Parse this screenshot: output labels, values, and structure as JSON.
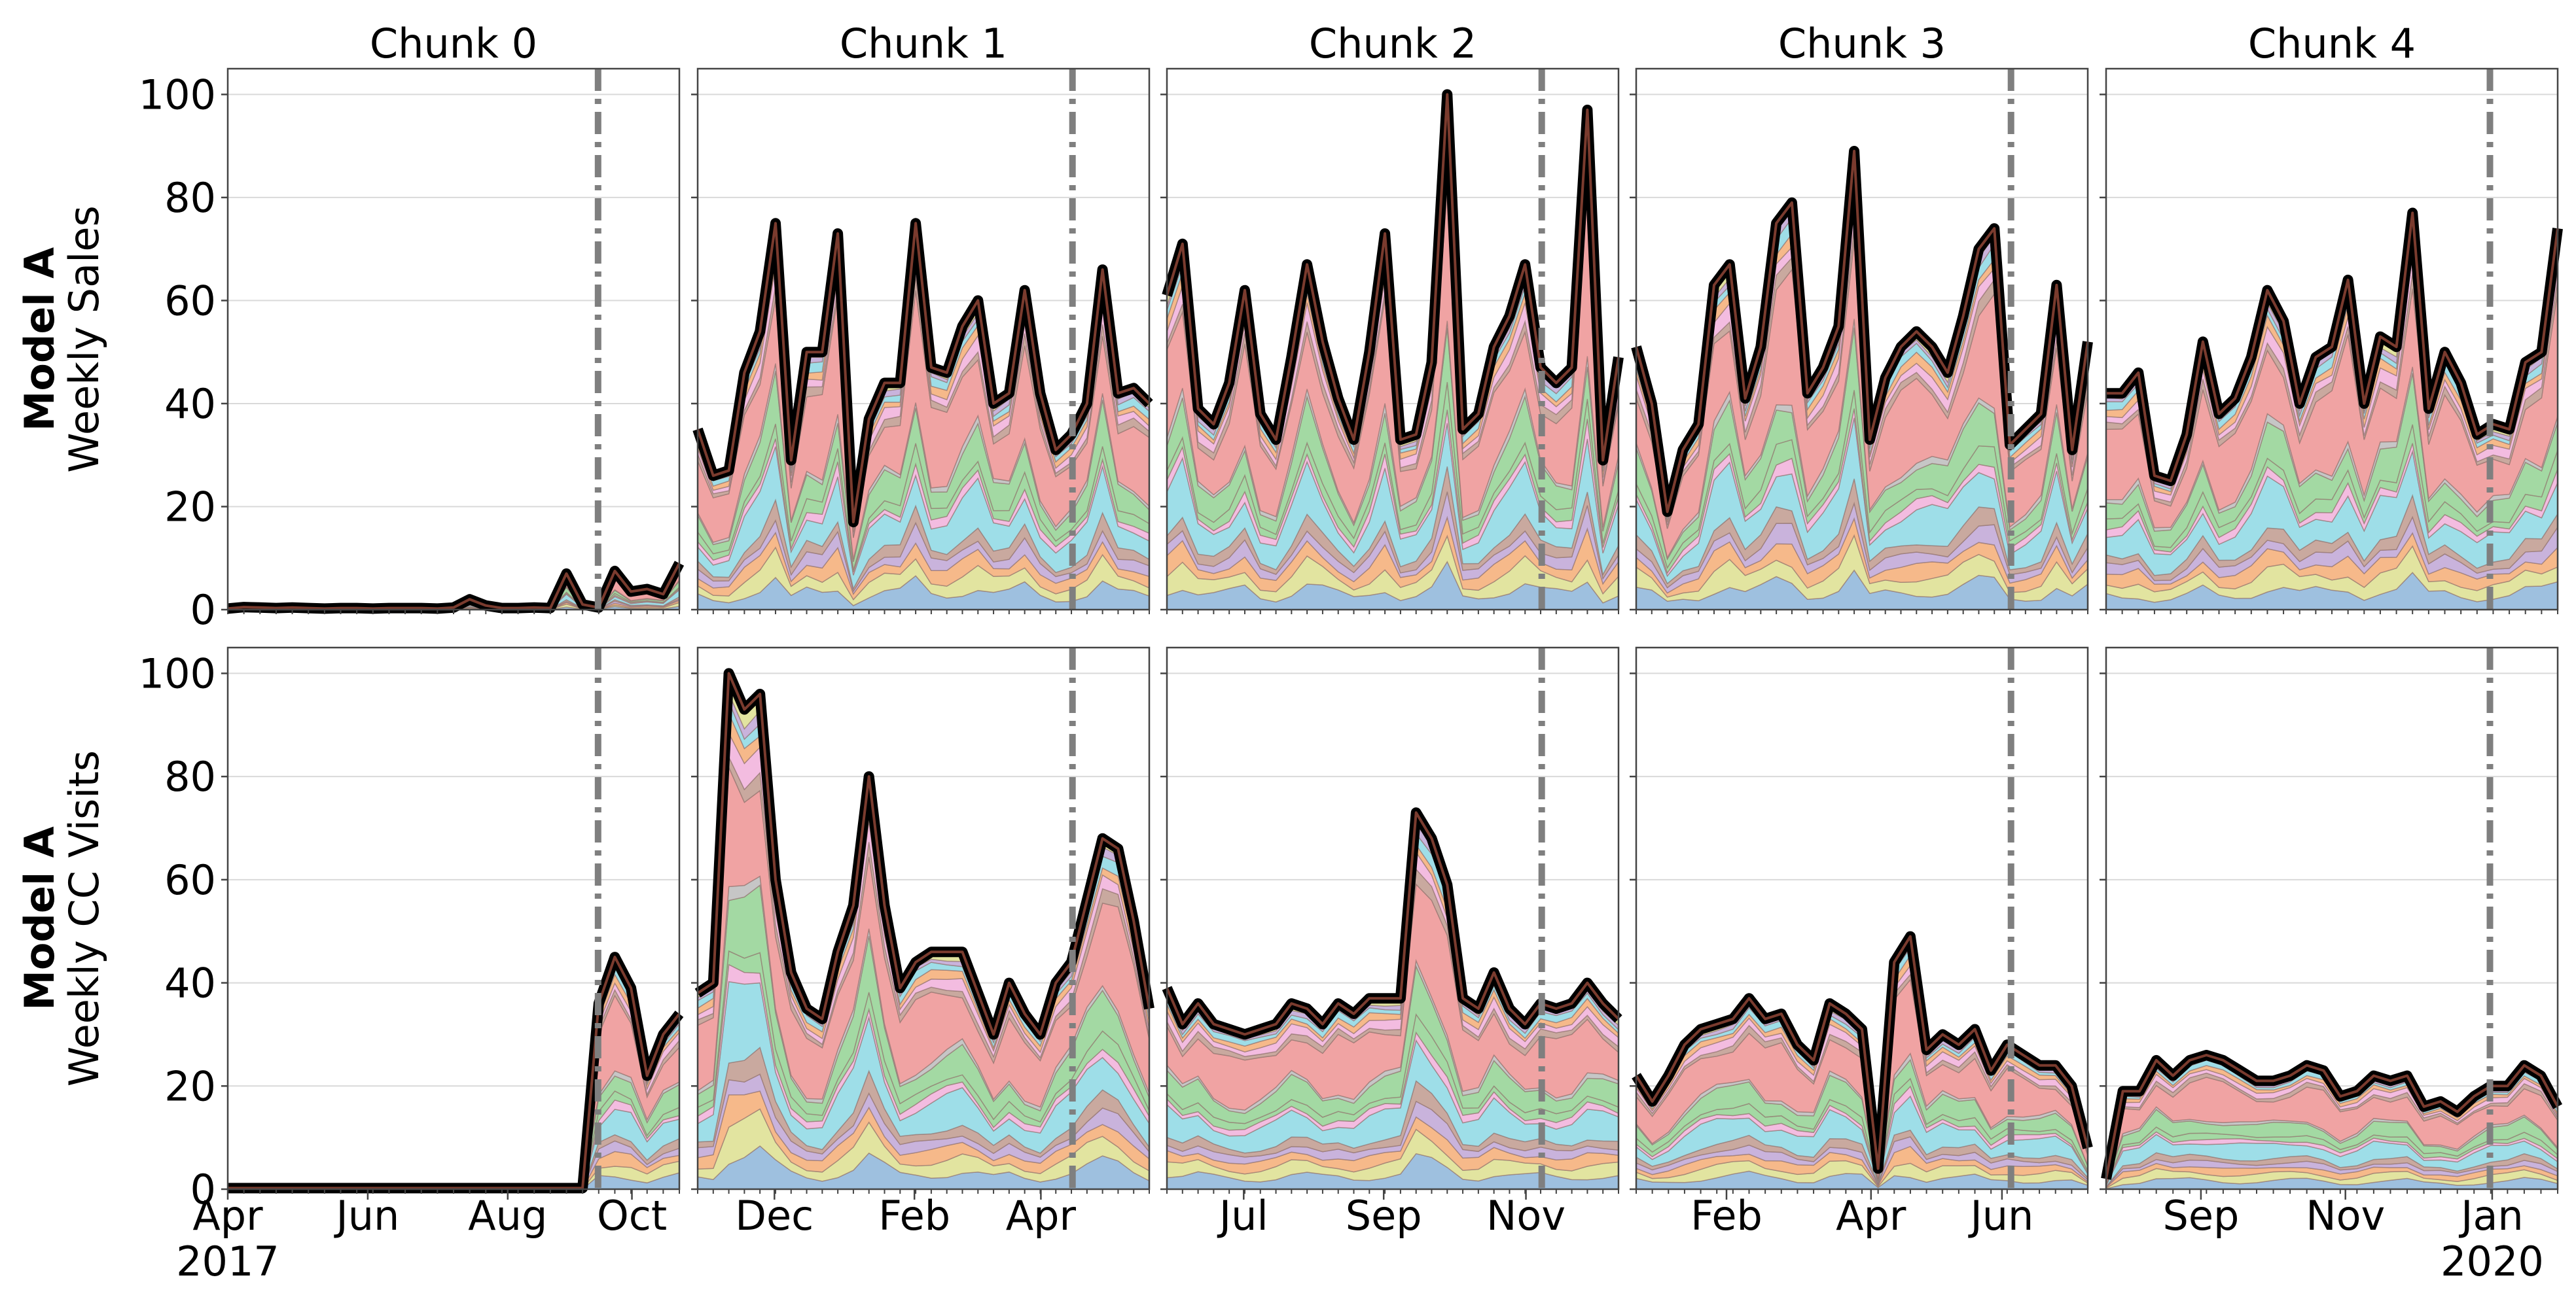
{
  "chart_data": {
    "type": "area",
    "chunk_titles": [
      "Chunk 0",
      "Chunk 1",
      "Chunk 2",
      "Chunk 3",
      "Chunk 4"
    ],
    "rows": [
      {
        "model_label": "Model A",
        "metric_label": "Weekly Sales"
      },
      {
        "model_label": "Model A",
        "metric_label": "Weekly CC Visits"
      }
    ],
    "ylim": [
      0,
      105
    ],
    "yticks": [
      "0",
      "20",
      "40",
      "60",
      "80",
      "100"
    ],
    "grid": true,
    "stack_colors": [
      "#9ec0df",
      "#f6b98a",
      "#a3d9a3",
      "#f0a3a3",
      "#c9b3dc",
      "#c9a99f",
      "#f3bce0",
      "#c6c6c6",
      "#e2e4a0",
      "#9edee8"
    ],
    "xticks": [
      [
        {
          "label": "Apr",
          "t": 0
        },
        {
          "label": "Jun",
          "t": 0.31
        },
        {
          "label": "Aug",
          "t": 0.62
        },
        {
          "label": "Oct",
          "t": 0.895
        }
      ],
      [
        {
          "label": "Dec",
          "t": 0.17
        },
        {
          "label": "Feb",
          "t": 0.48
        },
        {
          "label": "Apr",
          "t": 0.76
        }
      ],
      [
        {
          "label": "Jul",
          "t": 0.17
        },
        {
          "label": "Sep",
          "t": 0.48
        },
        {
          "label": "Nov",
          "t": 0.795
        }
      ],
      [
        {
          "label": "Feb",
          "t": 0.2
        },
        {
          "label": "Apr",
          "t": 0.52
        },
        {
          "label": "Jun",
          "t": 0.81
        }
      ],
      [
        {
          "label": "Sep",
          "t": 0.21
        },
        {
          "label": "Nov",
          "t": 0.53
        },
        {
          "label": "Jan",
          "t": 0.855
        }
      ]
    ],
    "year_labels": [
      {
        "label": "2017",
        "chunk": 0,
        "t": 0
      },
      {
        "label": "2020",
        "chunk": 4,
        "t": 0.855
      }
    ],
    "split_lines": [
      0.82,
      0.83,
      0.83,
      0.83,
      0.85
    ],
    "series": {
      "sales": [
        [
          0.2,
          0.5,
          0.4,
          0.3,
          0.4,
          0.3,
          0.2,
          0.3,
          0.3,
          0.2,
          0.3,
          0.3,
          0.3,
          0.2,
          0.4,
          2,
          0.8,
          0.3,
          0.3,
          0.4,
          0.3,
          7,
          1,
          0.4,
          7.5,
          3.5,
          4,
          3,
          9
        ],
        [
          35,
          26,
          27,
          46,
          54,
          75,
          29,
          50,
          50,
          73,
          17,
          37,
          44,
          44,
          75,
          47,
          46,
          55,
          60,
          40,
          42,
          62,
          42,
          31,
          34,
          40,
          66,
          42,
          43,
          40
        ],
        [
          61,
          71,
          39,
          36,
          44,
          62,
          38,
          33,
          49,
          67,
          52,
          41,
          33,
          50,
          73,
          33,
          34,
          48,
          100,
          35,
          38,
          51,
          57,
          67,
          47,
          44,
          47,
          97,
          29,
          49
        ],
        [
          51,
          40,
          19,
          31,
          36,
          63,
          67,
          41,
          51,
          75,
          79,
          42,
          47,
          55,
          89,
          33,
          45,
          51,
          54,
          51,
          46,
          57,
          70,
          74,
          32,
          35,
          38,
          63,
          31,
          52
        ],
        [
          42,
          42,
          46,
          26,
          25,
          34,
          52,
          38,
          41,
          49,
          62,
          56,
          40,
          49,
          51,
          64,
          40,
          53,
          51,
          77,
          39,
          50,
          44,
          34,
          36,
          35,
          48,
          50,
          74
        ]
      ],
      "visits": [
        [
          0.2,
          0.2,
          0.2,
          0.2,
          0.2,
          0.2,
          0.2,
          0.2,
          0.2,
          0.2,
          0.2,
          0.2,
          0.2,
          0.2,
          0.2,
          0.2,
          0.2,
          0.2,
          0.2,
          0.2,
          0.2,
          0.2,
          0.2,
          36,
          45,
          39,
          22,
          30,
          34
        ],
        [
          38,
          40,
          100,
          93,
          96,
          60,
          42,
          35,
          33,
          46,
          55,
          80,
          55,
          39,
          44,
          46,
          46,
          46,
          38,
          30,
          40,
          34,
          30,
          40,
          44,
          56,
          68,
          66,
          52,
          35
        ],
        [
          39,
          32,
          36,
          32,
          31,
          30,
          31,
          32,
          36,
          35,
          32,
          36,
          34,
          37,
          37,
          37,
          73,
          68,
          59,
          37,
          35,
          42,
          35,
          32,
          36,
          35,
          36,
          40,
          36,
          33
        ],
        [
          22,
          17,
          22,
          28,
          31,
          32,
          33,
          37,
          33,
          34,
          28,
          25,
          36,
          34,
          31,
          4,
          44,
          49,
          27,
          30,
          28,
          31,
          23,
          28,
          26,
          24,
          24,
          20,
          8
        ],
        [
          2,
          19,
          19,
          25,
          22,
          25,
          26,
          25,
          23,
          21,
          21,
          22,
          24,
          23,
          18,
          19,
          22,
          21,
          22,
          16,
          17,
          15,
          18,
          20,
          20,
          24,
          22,
          16
        ]
      ]
    }
  }
}
